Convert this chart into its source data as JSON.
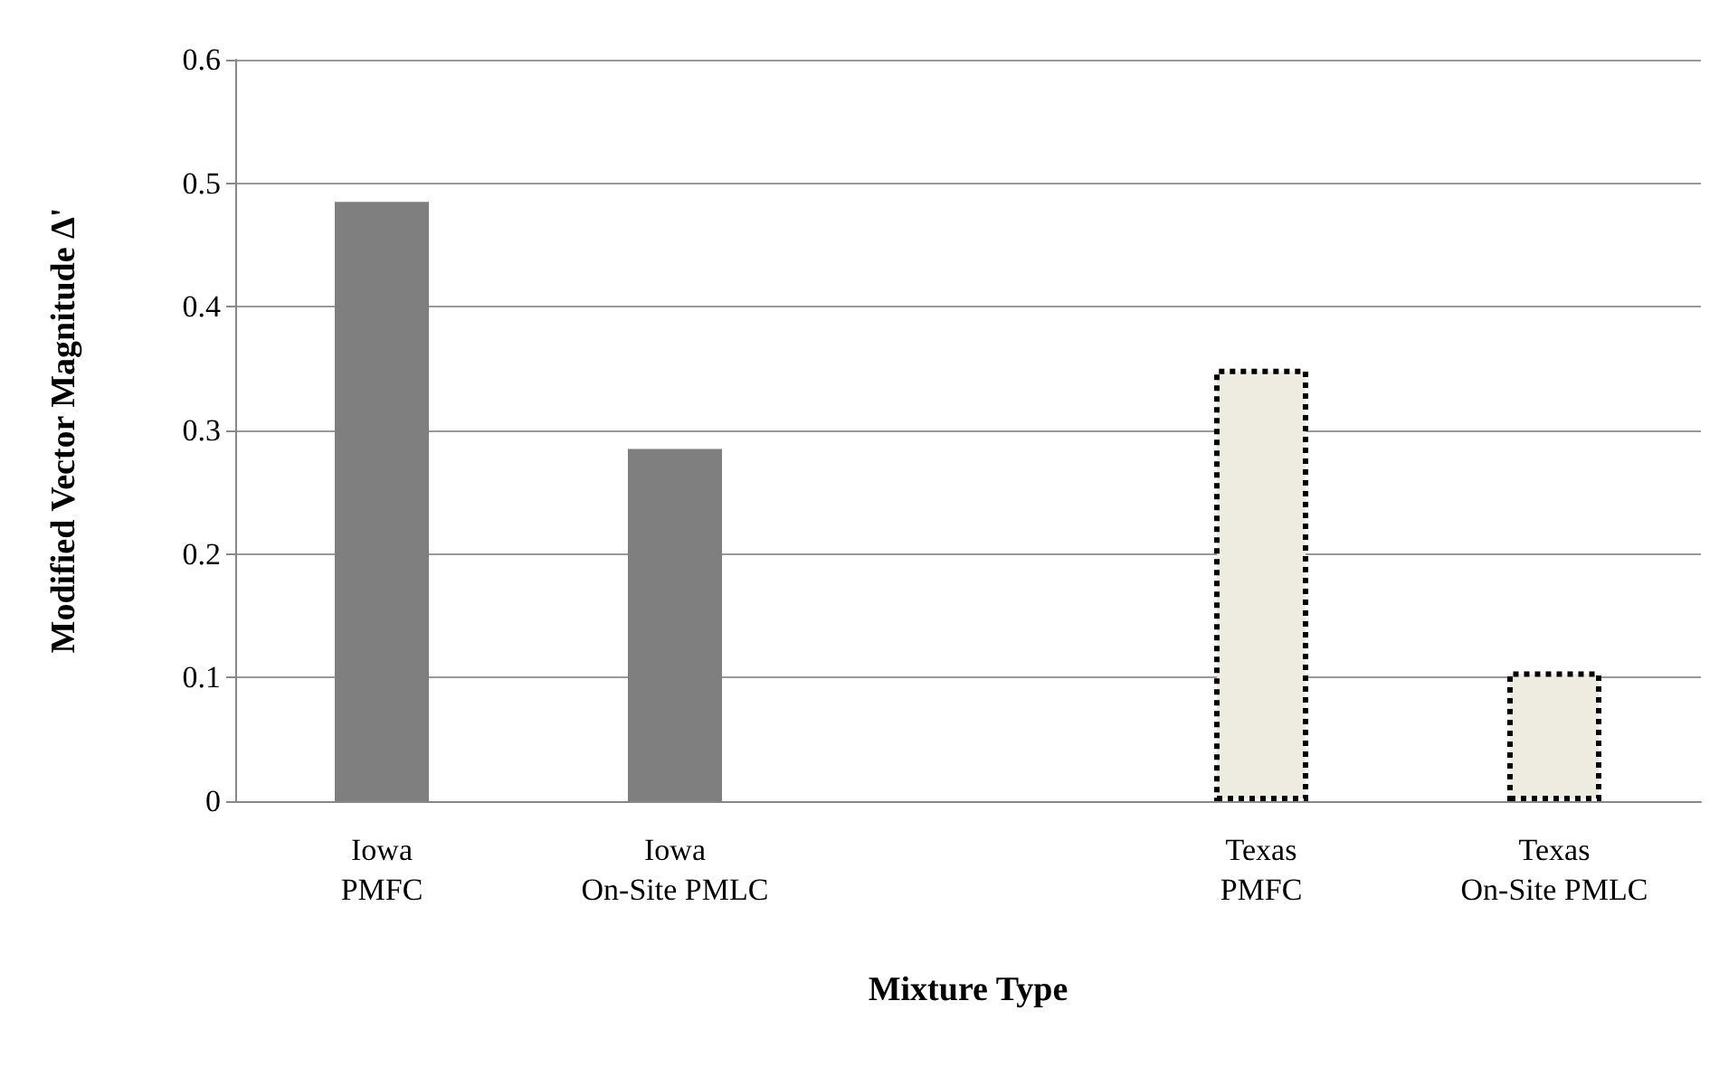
{
  "chart_data": {
    "type": "bar",
    "xlabel": "Mixture Type",
    "ylabel": "Modified Vector Magnitude Δ'",
    "categories": [
      "Iowa\nPMFC",
      "Iowa\nOn-Site PMLC",
      null,
      "Texas\nPMFC",
      "Texas\nOn-Site PMLC"
    ],
    "series": [
      {
        "color": "#7f7f7f",
        "values": [
          0.485,
          0.285,
          null,
          null,
          null
        ]
      },
      {
        "color": "#eeece1",
        "line_style": "dotted",
        "values": [
          null,
          null,
          null,
          0.35,
          0.105
        ]
      }
    ],
    "ylim": [
      0,
      0.6
    ],
    "yticks": [
      0,
      0.1,
      0.2,
      0.3,
      0.4,
      0.5,
      0.6
    ],
    "grid": "y"
  }
}
